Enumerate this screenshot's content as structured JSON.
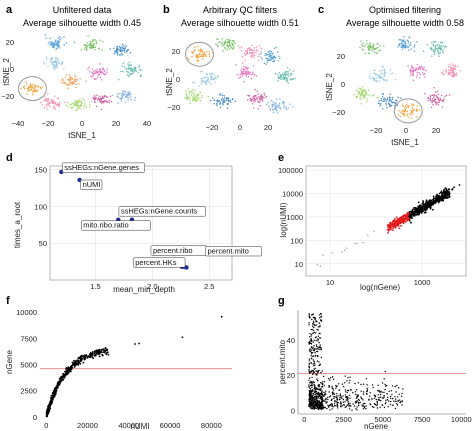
{
  "chart_data": [
    {
      "panel": "a",
      "type": "scatter",
      "title": "Unfiltered data",
      "subtitle": "Average silhouette width 0.45",
      "xlabel": "tSNE_1",
      "ylabel": "tSNE_2",
      "xticks": [
        "−40",
        "−20",
        "0",
        "20",
        "40"
      ],
      "yticks": [
        "−20",
        "0",
        "20"
      ],
      "xlim": [
        -45,
        45
      ],
      "ylim": [
        -38,
        38
      ],
      "highlight": {
        "x": -33,
        "y": -12
      },
      "clusters": [
        {
          "x": -18,
          "y": 28,
          "color": "#5aa3d6"
        },
        {
          "x": 5,
          "y": 26,
          "color": "#7dc36b"
        },
        {
          "x": 25,
          "y": 22,
          "color": "#4c8fc9"
        },
        {
          "x": 32,
          "y": 5,
          "color": "#66bdb0"
        },
        {
          "x": 10,
          "y": 2,
          "color": "#e377c2"
        },
        {
          "x": -8,
          "y": -5,
          "color": "#f0a35a"
        },
        {
          "x": -18,
          "y": 10,
          "color": "#9ecae1"
        },
        {
          "x": -33,
          "y": -12,
          "color": "#f4a442"
        },
        {
          "x": 12,
          "y": -22,
          "color": "#d162a4"
        },
        {
          "x": 27,
          "y": -18,
          "color": "#8ab5e0"
        },
        {
          "x": -3,
          "y": -26,
          "color": "#a4d86e"
        },
        {
          "x": -20,
          "y": -24,
          "color": "#f78fb3"
        }
      ]
    },
    {
      "panel": "b",
      "type": "scatter",
      "title": "Arbitrary QC filters",
      "subtitle": "Average silhouette width 0.51",
      "xlabel": "tSNE_1",
      "ylabel": "tSNE_2",
      "xticks": [
        "−20",
        "0",
        "20"
      ],
      "yticks": [
        "−20",
        "0",
        "20"
      ],
      "xlim": [
        -35,
        40
      ],
      "ylim": [
        -35,
        38
      ],
      "highlight": {
        "x": -25,
        "y": 20
      },
      "clusters": [
        {
          "x": -25,
          "y": 20,
          "color": "#f4a442"
        },
        {
          "x": -8,
          "y": 28,
          "color": "#7dc36b"
        },
        {
          "x": 8,
          "y": 22,
          "color": "#f78fb3"
        },
        {
          "x": 22,
          "y": 18,
          "color": "#5aa3d6"
        },
        {
          "x": 30,
          "y": 2,
          "color": "#66bdb0"
        },
        {
          "x": 5,
          "y": 5,
          "color": "#e377c2"
        },
        {
          "x": -20,
          "y": 0,
          "color": "#9ecae1"
        },
        {
          "x": -28,
          "y": -14,
          "color": "#a4d86e"
        },
        {
          "x": -10,
          "y": -18,
          "color": "#4c8fc9"
        },
        {
          "x": 12,
          "y": -16,
          "color": "#d162a4"
        },
        {
          "x": 26,
          "y": -22,
          "color": "#8ab5e0"
        }
      ]
    },
    {
      "panel": "c",
      "type": "scatter",
      "title": "Optimised filtering",
      "subtitle": "Average silhouette width 0.58",
      "xlabel": "tSNE_1",
      "ylabel": "tSNE_2",
      "xticks": [
        "−20",
        "0",
        "20"
      ],
      "yticks": [
        "−20",
        "0",
        "20"
      ],
      "xlim": [
        -35,
        40
      ],
      "ylim": [
        -35,
        35
      ],
      "highlight": {
        "x": 2,
        "y": -25
      },
      "clusters": [
        {
          "x": -22,
          "y": 24,
          "color": "#7dc36b"
        },
        {
          "x": 0,
          "y": 26,
          "color": "#5aa3d6"
        },
        {
          "x": 20,
          "y": 22,
          "color": "#66bdb0"
        },
        {
          "x": 30,
          "y": 5,
          "color": "#f78fb3"
        },
        {
          "x": 8,
          "y": 6,
          "color": "#e377c2"
        },
        {
          "x": -15,
          "y": 2,
          "color": "#9ecae1"
        },
        {
          "x": -26,
          "y": -12,
          "color": "#a4d86e"
        },
        {
          "x": 2,
          "y": -25,
          "color": "#f4a442"
        },
        {
          "x": 20,
          "y": -16,
          "color": "#d162a4"
        },
        {
          "x": -10,
          "y": -18,
          "color": "#4c8fc9"
        }
      ]
    },
    {
      "panel": "d",
      "type": "scatter",
      "xlabel": "mean_min_depth",
      "ylabel": "times_a_root",
      "xticks": [
        "1.5",
        "2.0",
        "2.5"
      ],
      "yticks": [
        "50",
        "100",
        "150"
      ],
      "xlim": [
        1.1,
        2.7
      ],
      "ylim": [
        0,
        155
      ],
      "grid": true,
      "points": [
        {
          "label": "ssHEGs:nGene.genes",
          "x": 1.2,
          "y": 147
        },
        {
          "label": "nUMI",
          "x": 1.36,
          "y": 136
        },
        {
          "label": "ssHEGs:nGene.counts",
          "x": 1.82,
          "y": 82
        },
        {
          "label": "mito.ribo.ratio",
          "x": 1.7,
          "y": 82
        },
        {
          "label": "percent.ribo",
          "x": 2.26,
          "y": 18
        },
        {
          "label": "percent.mito",
          "x": 2.3,
          "y": 17
        },
        {
          "label": "percent.HKs",
          "x": 2.28,
          "y": 18
        }
      ]
    },
    {
      "panel": "e",
      "type": "scatter",
      "xlabel": "log(nGene)",
      "ylabel": "log(nUMI)",
      "xscale": "log",
      "yscale": "log",
      "xticks": [
        "10",
        "1000"
      ],
      "yticks": [
        "10",
        "100",
        "1000",
        "10000",
        "100000"
      ],
      "xlim": [
        3,
        9000
      ],
      "ylim": [
        3,
        150000
      ],
      "grid": true,
      "colors": {
        "low": "#e41a1c",
        "high": "#000000"
      }
    },
    {
      "panel": "f",
      "type": "scatter",
      "xlabel": "nUMI",
      "ylabel": "nGene",
      "xticks": [
        "0",
        "20000",
        "40000",
        "60000",
        "80000"
      ],
      "yticks": [
        "0",
        "2500",
        "5000",
        "7500",
        "10000"
      ],
      "xlim": [
        -3000,
        90000
      ],
      "ylim": [
        -300,
        10200
      ],
      "threshold": 4600,
      "threshold_color": "#e88080"
    },
    {
      "panel": "g",
      "type": "scatter",
      "xlabel": "nGene",
      "ylabel": "percent.mito",
      "xticks": [
        "0",
        "2500",
        "5000",
        "7500",
        "10000"
      ],
      "yticks": [
        "0",
        "20",
        "40"
      ],
      "xlim": [
        -400,
        10300
      ],
      "ylim": [
        -2,
        57
      ],
      "threshold": 21,
      "threshold_color": "#e88080"
    }
  ]
}
